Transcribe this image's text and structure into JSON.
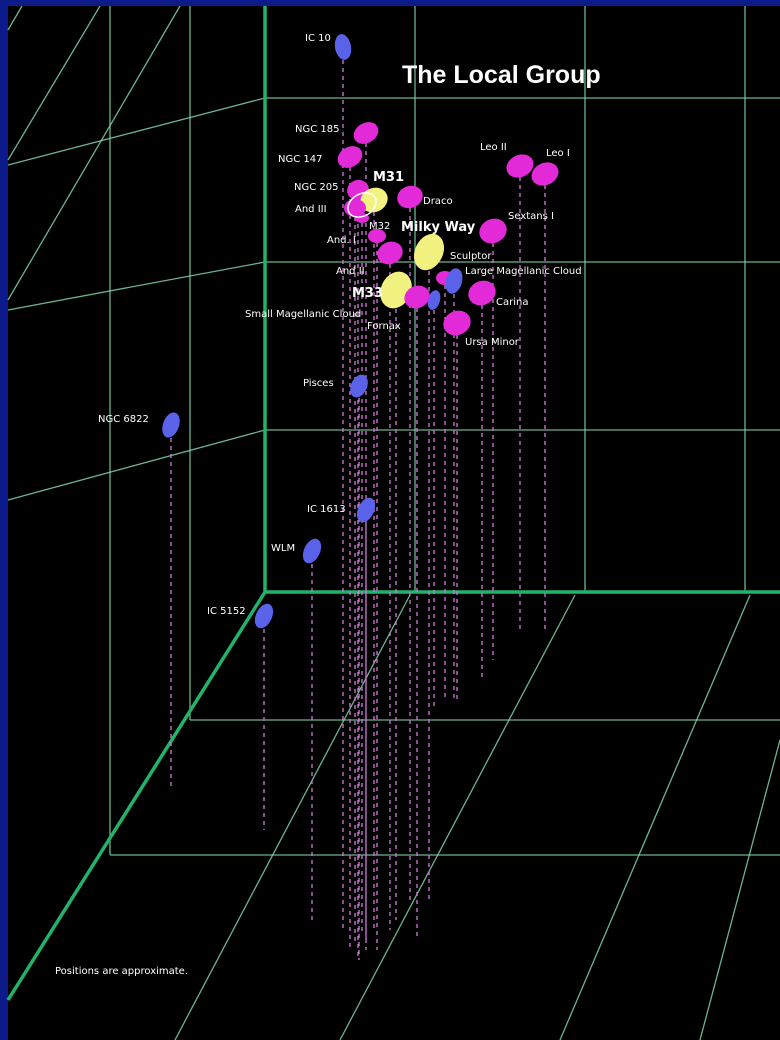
{
  "title": "The Local Group",
  "footnote": "Positions are approximate.",
  "colors": {
    "background": "#000000",
    "border": "#0c1a8a",
    "grid_major": "#22b36a",
    "grid_minor": "#7fd4a8",
    "dwarf": "#e22ad8",
    "spiral_major": "#f2f280",
    "outlying": "#5a62ea",
    "drop_line": "#d07ad8",
    "label": "#ffffff"
  },
  "galaxies": [
    {
      "name": "IC 10",
      "type": "outlying"
    },
    {
      "name": "NGC 185",
      "type": "dwarf"
    },
    {
      "name": "NGC 147",
      "type": "dwarf"
    },
    {
      "name": "NGC 205",
      "type": "dwarf"
    },
    {
      "name": "M31",
      "type": "spiral_major"
    },
    {
      "name": "And III",
      "type": "dwarf"
    },
    {
      "name": "M32",
      "type": "dwarf"
    },
    {
      "name": "And. I",
      "type": "dwarf"
    },
    {
      "name": "Draco",
      "type": "dwarf"
    },
    {
      "name": "Leo II",
      "type": "dwarf"
    },
    {
      "name": "Leo I",
      "type": "dwarf"
    },
    {
      "name": "Sextans I",
      "type": "dwarf"
    },
    {
      "name": "Milky Way",
      "type": "spiral_major"
    },
    {
      "name": "Sculptor",
      "type": "dwarf"
    },
    {
      "name": "And II",
      "type": "dwarf"
    },
    {
      "name": "Large Magellanic Cloud",
      "type": "outlying"
    },
    {
      "name": "M33",
      "type": "spiral_major"
    },
    {
      "name": "Carina",
      "type": "dwarf"
    },
    {
      "name": "Small Magellanic Cloud",
      "type": "outlying"
    },
    {
      "name": "Fornax",
      "type": "dwarf"
    },
    {
      "name": "Ursa Minor",
      "type": "dwarf"
    },
    {
      "name": "Pisces",
      "type": "outlying"
    },
    {
      "name": "NGC 6822",
      "type": "outlying"
    },
    {
      "name": "IC 1613",
      "type": "outlying"
    },
    {
      "name": "WLM",
      "type": "outlying"
    },
    {
      "name": "IC 5152",
      "type": "outlying"
    }
  ]
}
